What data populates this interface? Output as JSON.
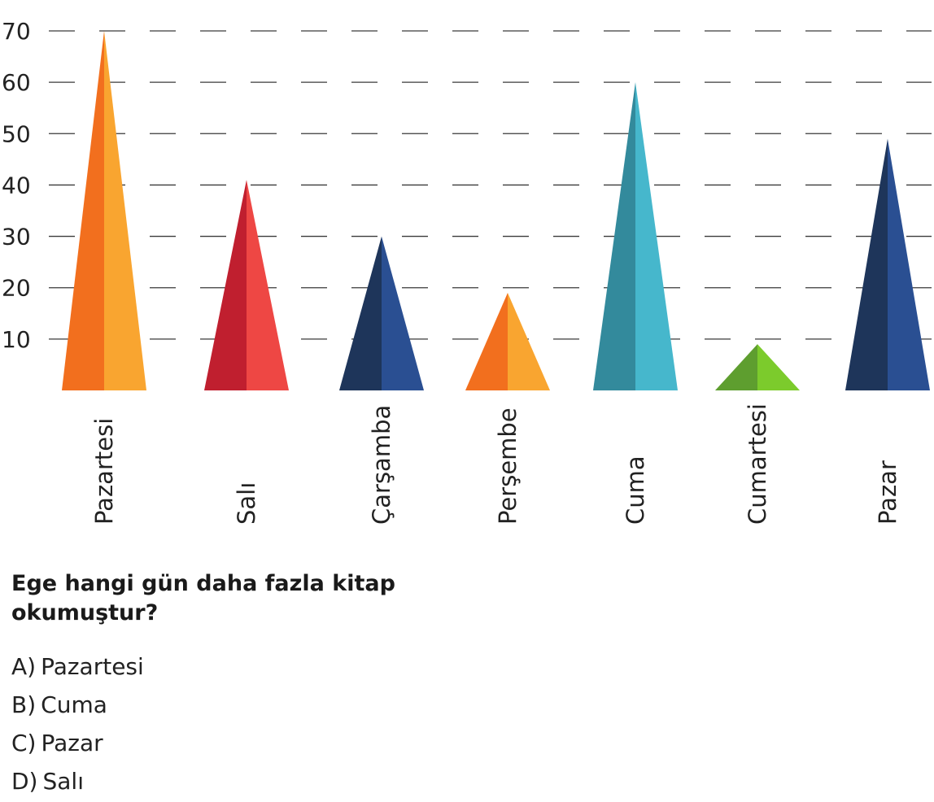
{
  "chart_data": {
    "type": "bar",
    "mark_shape": "triangle",
    "categories": [
      "Pazartesi",
      "Salı",
      "Çarşamba",
      "Perşembe",
      "Cuma",
      "Cumartesi",
      "Pazar"
    ],
    "values": [
      70,
      41,
      30,
      19,
      60,
      9,
      49
    ],
    "y_ticks": [
      10,
      20,
      30,
      40,
      50,
      60,
      70
    ],
    "ylim": [
      0,
      70
    ],
    "grid": "dashed-horizontal",
    "colors": [
      [
        "#F26F1E",
        "#F9A530"
      ],
      [
        "#C01F2F",
        "#EE4744"
      ],
      [
        "#1E355A",
        "#2A4F92"
      ],
      [
        "#F26F1E",
        "#F9A530"
      ],
      [
        "#338A9C",
        "#46B7CC"
      ],
      [
        "#5E9E2F",
        "#7CCB2C"
      ],
      [
        "#1E355A",
        "#2A4F92"
      ]
    ]
  },
  "question": {
    "text": "Ege hangi gün daha fazla kitap okumuştur?",
    "options": [
      {
        "letter": "A)",
        "text": "Pazartesi"
      },
      {
        "letter": "B)",
        "text": "Cuma"
      },
      {
        "letter": "C)",
        "text": "Pazar"
      },
      {
        "letter": "D)",
        "text": "Salı"
      }
    ]
  }
}
